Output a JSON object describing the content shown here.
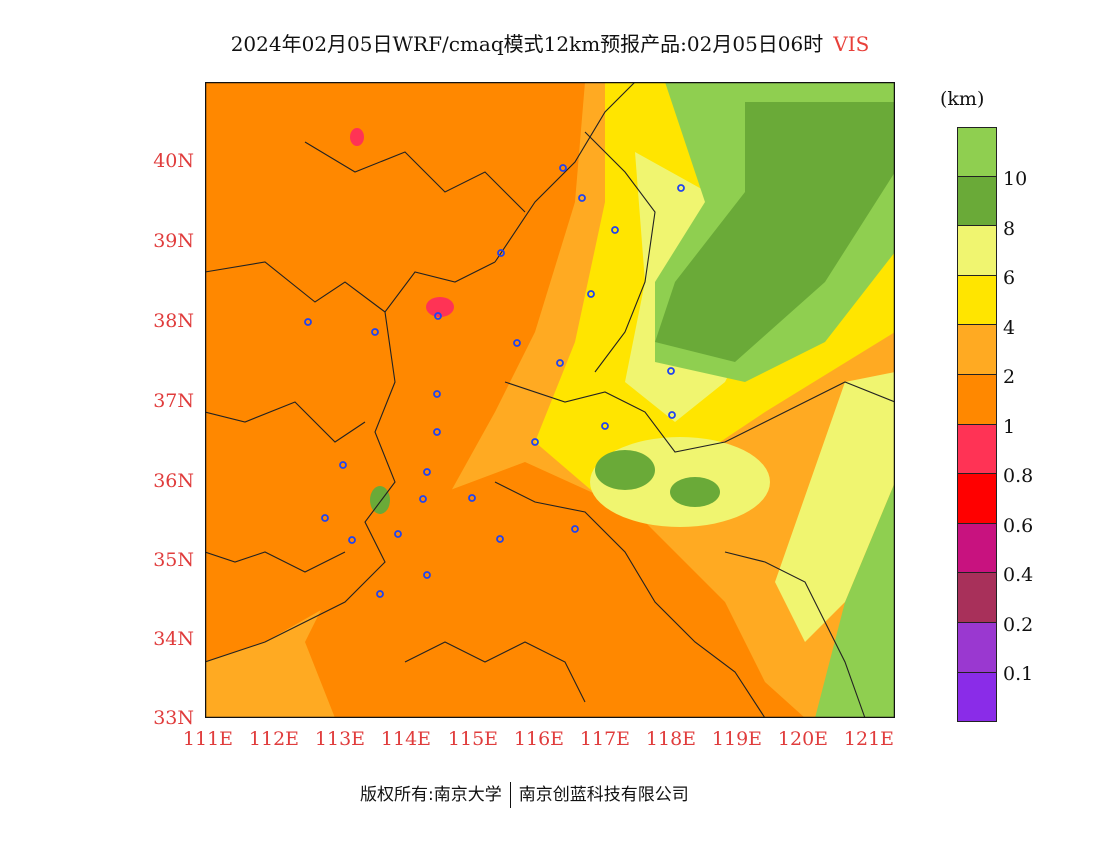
{
  "title": {
    "text": "2024年02月05日WRF/cmaq模式12km预报产品:02月05日06时",
    "variable": "VIS"
  },
  "map": {
    "y_ticks": [
      "40N",
      "39N",
      "38N",
      "37N",
      "36N",
      "35N",
      "34N",
      "33N"
    ],
    "x_ticks": [
      "111E",
      "112E",
      "113E",
      "114E",
      "115E",
      "116E",
      "117E",
      "118E",
      "119E",
      "120E",
      "121E"
    ],
    "lon_range": [
      111,
      121.4
    ],
    "lat_range": [
      33,
      41
    ]
  },
  "colorbar": {
    "unit": "(km)",
    "labels": [
      "10",
      "8",
      "6",
      "4",
      "2",
      "1",
      "0.8",
      "0.6",
      "0.4",
      "0.2",
      "0.1"
    ],
    "colors": [
      "#8fcf50",
      "#6aaa38",
      "#f0f570",
      "#ffe500",
      "#ffaa22",
      "#ff8800",
      "#ff3355",
      "#ff0000",
      "#c8127f",
      "#a8305a",
      "#9a38d0",
      "#8a2ce8"
    ]
  },
  "footer": {
    "left": "版权所有:南京大学",
    "right": "南京创蓝科技有限公司"
  }
}
